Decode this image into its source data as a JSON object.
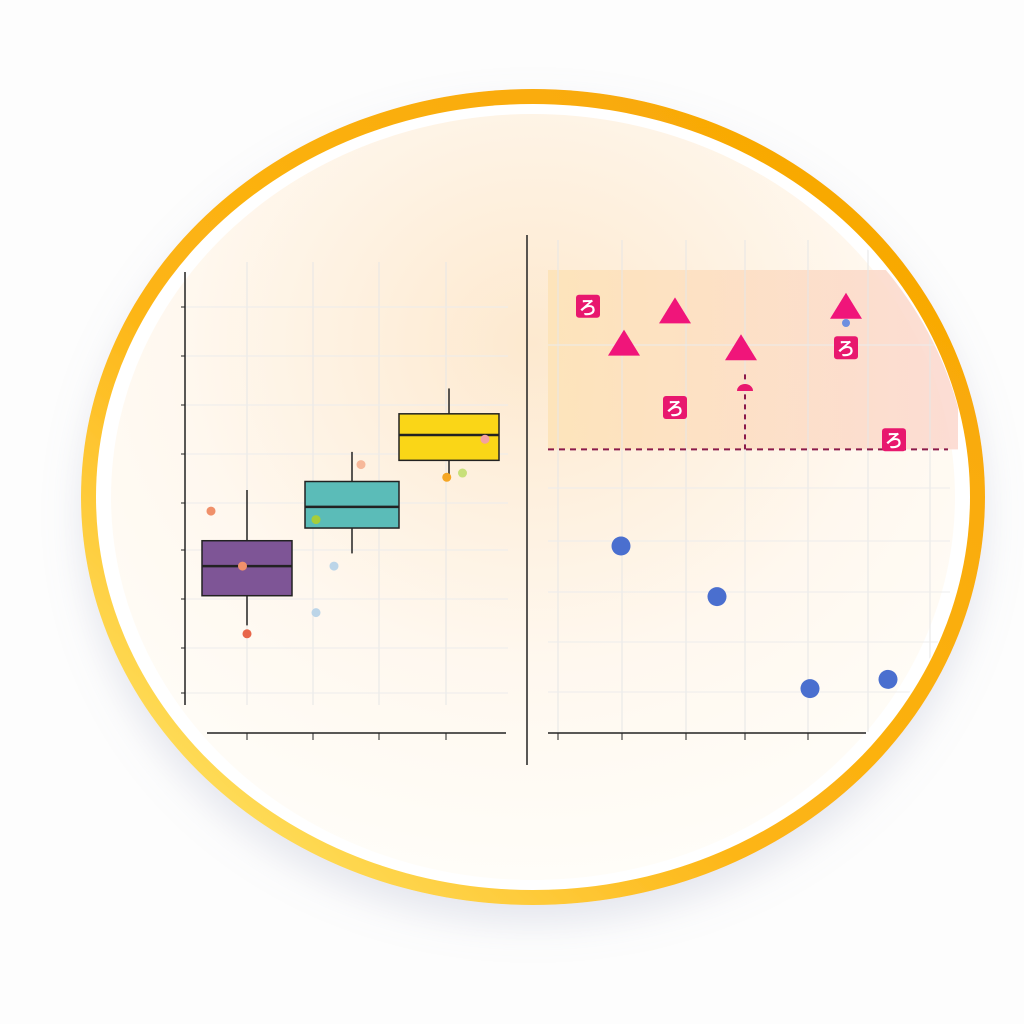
{
  "colors": {
    "ring": "#fdb515",
    "ring_light": "#ffe97a",
    "threshold": "#8b1a4a",
    "highlight_fill": "#fbd7a8"
  },
  "chart_data": [
    {
      "type": "box",
      "title": "",
      "xlabel": "",
      "ylabel": "",
      "ylim": [
        0,
        10
      ],
      "grid": true,
      "boxes": [
        {
          "color": "#7e5596",
          "min": 1.6,
          "q1": 2.3,
          "median": 3.0,
          "q3": 3.6,
          "max": 4.8,
          "outliers": [
            {
              "y": 4.3,
              "dx": -0.8,
              "color": "#f0906a"
            },
            {
              "y": 3.0,
              "dx": -0.1,
              "color": "#f0906a"
            },
            {
              "y": 1.4,
              "dx": 0,
              "color": "#e8664a"
            }
          ]
        },
        {
          "color": "#5bbcb8",
          "min": 3.3,
          "q1": 3.9,
          "median": 4.4,
          "q3": 5.0,
          "max": 5.7,
          "outliers": [
            {
              "y": 4.1,
              "dx": -0.8,
              "color": "#a7cd3a"
            },
            {
              "y": 1.9,
              "dx": -0.8,
              "color": "#bcd5e8"
            },
            {
              "y": 3.0,
              "dx": -0.4,
              "color": "#bcd5e8"
            },
            {
              "y": 5.4,
              "dx": 0.2,
              "color": "#f7b899"
            }
          ]
        },
        {
          "color": "#fad617",
          "min": 5.1,
          "q1": 5.5,
          "median": 6.1,
          "q3": 6.6,
          "max": 7.2,
          "outliers": [
            {
              "y": 5.1,
              "dx": -0.05,
              "color": "#f5a623"
            },
            {
              "y": 5.2,
              "dx": 0.3,
              "color": "#c8e07a"
            },
            {
              "y": 6.0,
              "dx": 0.8,
              "color": "#f4a0a0"
            }
          ]
        }
      ]
    },
    {
      "type": "scatter",
      "title": "",
      "xlabel": "",
      "ylabel": "",
      "xlim": [
        0,
        11
      ],
      "ylim": [
        0,
        10
      ],
      "grid": true,
      "threshold_y": 6.1,
      "series": [
        {
          "marker": "circle",
          "color": "#4a6fcf",
          "points": [
            [
              2.1,
              4.0
            ],
            [
              5.3,
              2.9
            ],
            [
              8.4,
              0.9
            ],
            [
              11.0,
              1.1
            ]
          ]
        },
        {
          "marker": "triangle",
          "color": "#f0157a",
          "points": [
            [
              2.2,
              8.4
            ],
            [
              3.9,
              9.1
            ],
            [
              6.1,
              8.3
            ],
            [
              9.6,
              9.2
            ]
          ]
        },
        {
          "marker": "square-glyph",
          "glyph": "ろ",
          "color": "#e8186e",
          "points": [
            [
              1.0,
              9.2
            ],
            [
              3.9,
              7.0
            ],
            [
              9.6,
              8.3
            ],
            [
              11.2,
              6.3
            ]
          ]
        }
      ]
    }
  ]
}
